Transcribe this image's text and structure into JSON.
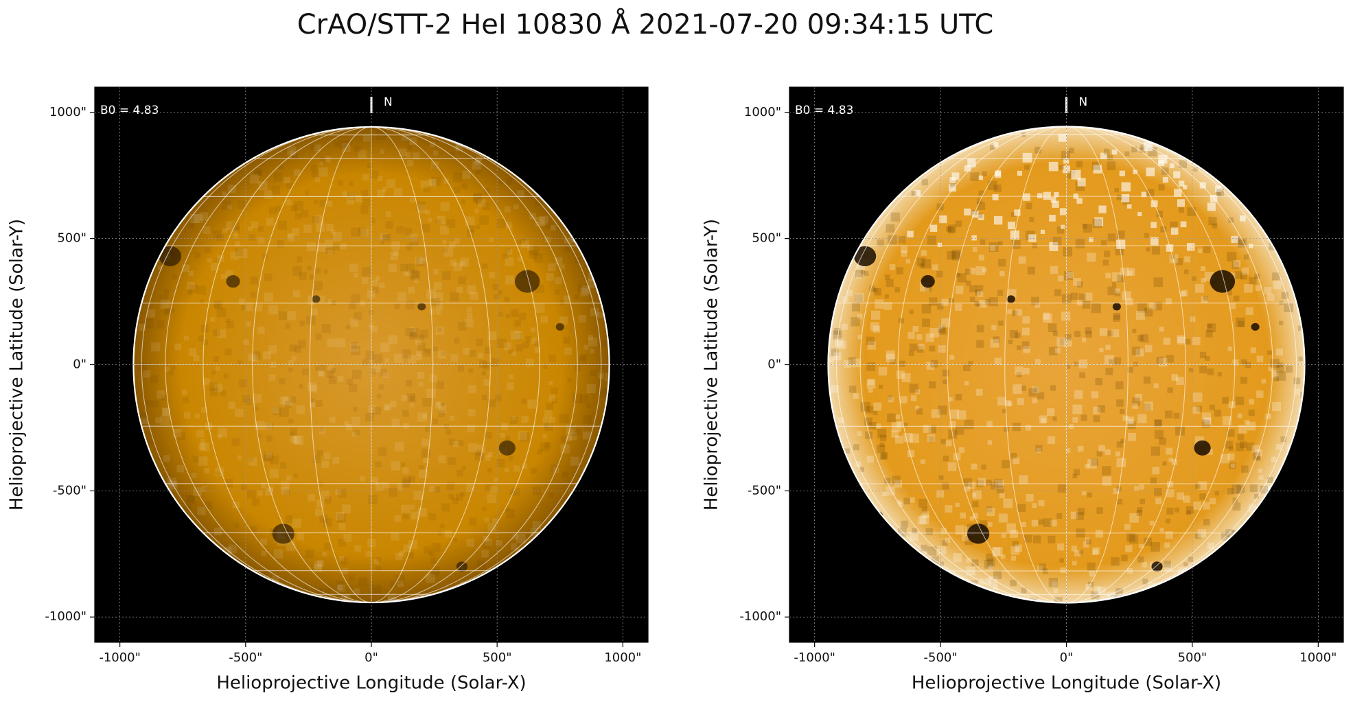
{
  "title": "CrAO/STT-2 HeI 10830 Å 2021-07-20 09:34:15 UTC",
  "chart_data": [
    {
      "type": "image",
      "xlabel": "Helioprojective Longitude (Solar-X)",
      "ylabel": "Helioprojective Latitude (Solar-Y)",
      "xlim": [
        -1100,
        1100
      ],
      "ylim": [
        -1100,
        1100
      ],
      "xticks": [
        {
          "value": -1000,
          "label": "-1000\""
        },
        {
          "value": -500,
          "label": "-500\""
        },
        {
          "value": 0,
          "label": "0\""
        },
        {
          "value": 500,
          "label": "500\""
        },
        {
          "value": 1000,
          "label": "1000\""
        }
      ],
      "yticks": [
        {
          "value": -1000,
          "label": "-1000\""
        },
        {
          "value": -500,
          "label": "-500\""
        },
        {
          "value": 0,
          "label": "0\""
        },
        {
          "value": 500,
          "label": "500\""
        },
        {
          "value": 1000,
          "label": "1000\""
        }
      ],
      "grid": true,
      "annotations": [
        "B0 = 4.83",
        "N"
      ],
      "color": "#d48a00"
    },
    {
      "type": "image",
      "xlabel": "Helioprojective Longitude (Solar-X)",
      "ylabel": "Helioprojective Latitude (Solar-Y)",
      "xlim": [
        -1100,
        1100
      ],
      "ylim": [
        -1100,
        1100
      ],
      "xticks": [
        {
          "value": -1000,
          "label": "-1000\""
        },
        {
          "value": -500,
          "label": "-500\""
        },
        {
          "value": 0,
          "label": "0\""
        },
        {
          "value": 500,
          "label": "500\""
        },
        {
          "value": 1000,
          "label": "1000\""
        }
      ],
      "yticks": [
        {
          "value": -1000,
          "label": "-1000\""
        },
        {
          "value": -500,
          "label": "-500\""
        },
        {
          "value": 0,
          "label": "0\""
        },
        {
          "value": 500,
          "label": "500\""
        },
        {
          "value": 1000,
          "label": "1000\""
        }
      ],
      "grid": true,
      "annotations": [
        "B0 = 4.83",
        "N"
      ],
      "color": "#e39a1c"
    }
  ]
}
